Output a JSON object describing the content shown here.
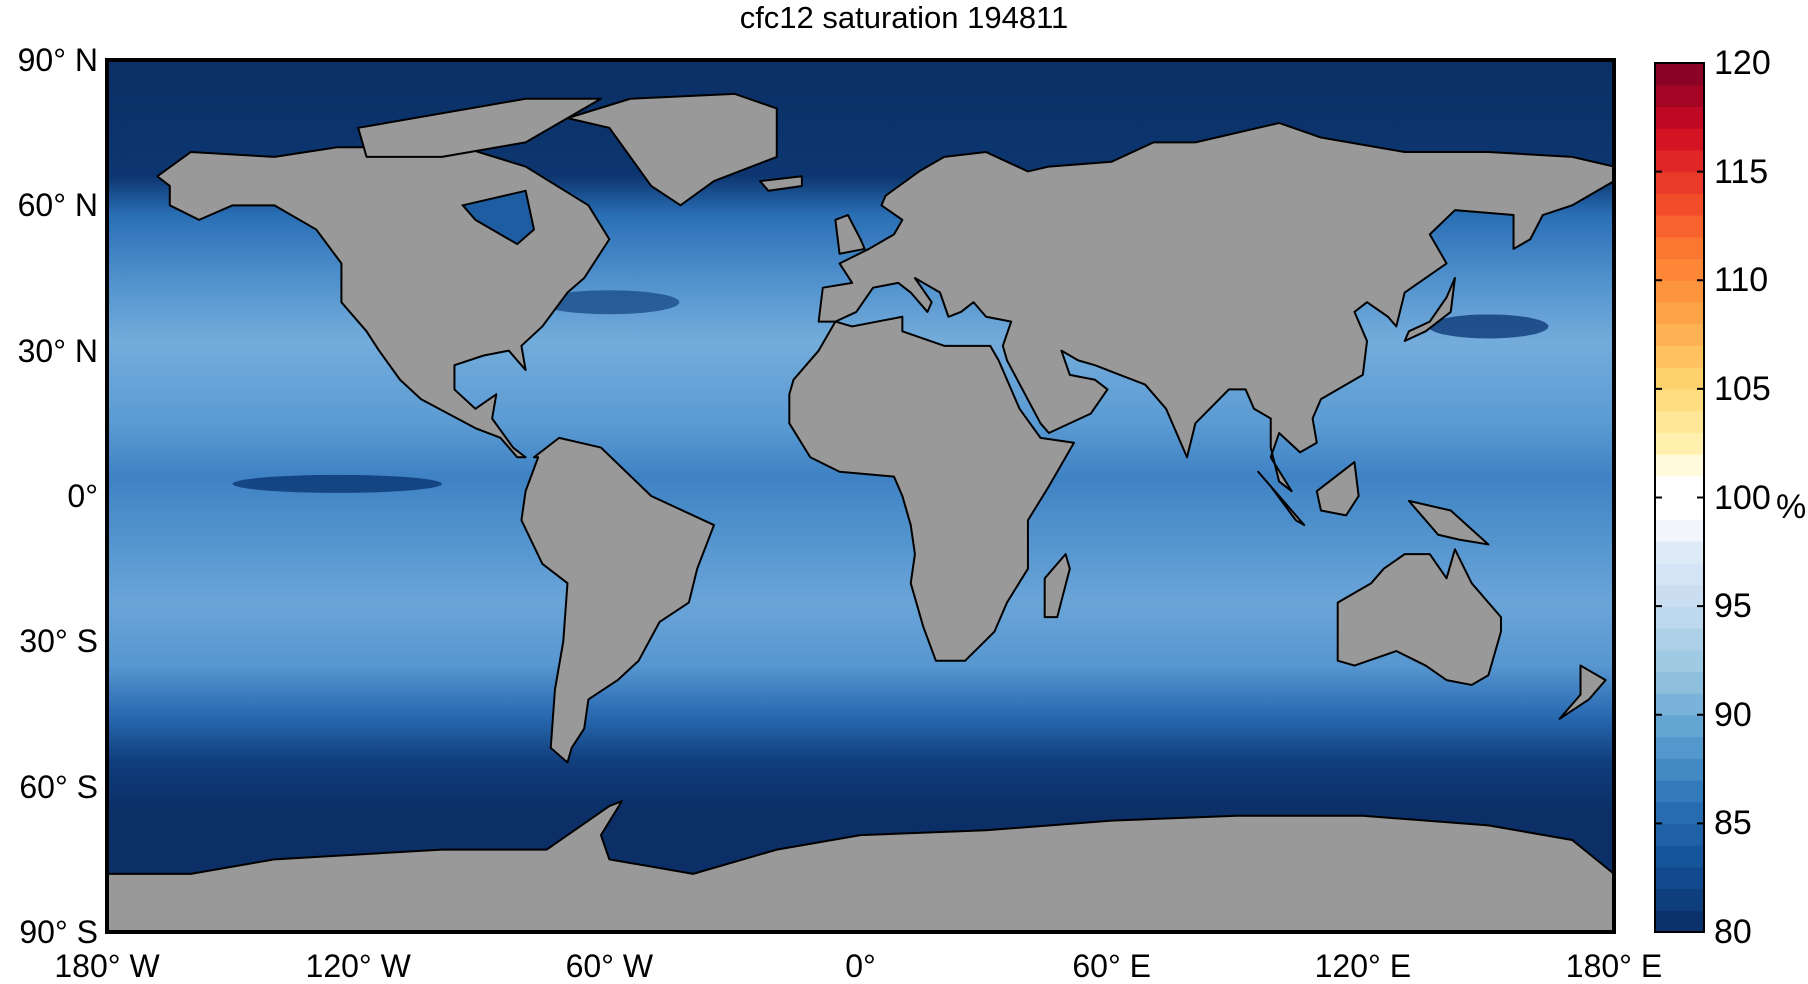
{
  "chart_data": {
    "type": "heatmap",
    "title": "cfc12 saturation 194811",
    "projection": "equirectangular",
    "xlim": [
      -180,
      180
    ],
    "ylim": [
      -90,
      90
    ],
    "xticks": [
      {
        "value": -180,
        "label": "180° W"
      },
      {
        "value": -120,
        "label": "120° W"
      },
      {
        "value": -60,
        "label": "60° W"
      },
      {
        "value": 0,
        "label": "0°"
      },
      {
        "value": 60,
        "label": "60° E"
      },
      {
        "value": 120,
        "label": "120° E"
      },
      {
        "value": 180,
        "label": "180° E"
      }
    ],
    "yticks": [
      {
        "value": 90,
        "label": "90° N"
      },
      {
        "value": 60,
        "label": "60° N"
      },
      {
        "value": 30,
        "label": "30° N"
      },
      {
        "value": 0,
        "label": "0°"
      },
      {
        "value": -30,
        "label": "30° S"
      },
      {
        "value": -60,
        "label": "60° S"
      },
      {
        "value": -90,
        "label": "90° S"
      }
    ],
    "colorbar": {
      "range": [
        80,
        120
      ],
      "levels": 40,
      "ticks": [
        80,
        85,
        90,
        95,
        100,
        105,
        110,
        115,
        120
      ],
      "tick_labels": [
        "80",
        "85",
        "90",
        "95",
        "100",
        "105",
        "110",
        "115",
        "120"
      ],
      "unit": "%",
      "colormap": [
        [
          80,
          "#0a2c62"
        ],
        [
          83,
          "#114f94"
        ],
        [
          86,
          "#2b72b5"
        ],
        [
          89,
          "#5a9fd0"
        ],
        [
          92,
          "#98c7e1"
        ],
        [
          95,
          "#c6dbef"
        ],
        [
          98,
          "#e4edf8"
        ],
        [
          99,
          "#ffffff"
        ],
        [
          101,
          "#ffffff"
        ],
        [
          102,
          "#fff5b8"
        ],
        [
          105,
          "#fed976"
        ],
        [
          108,
          "#fdaa4c"
        ],
        [
          111,
          "#fd8031"
        ],
        [
          114,
          "#f0432a"
        ],
        [
          117,
          "#cc0a22"
        ],
        [
          120,
          "#7d0025"
        ]
      ]
    },
    "land_color": "#999999",
    "ocean_description_colors": {
      "polar": "#0b2f66",
      "subtropical": "#6ea7d8"
    }
  }
}
